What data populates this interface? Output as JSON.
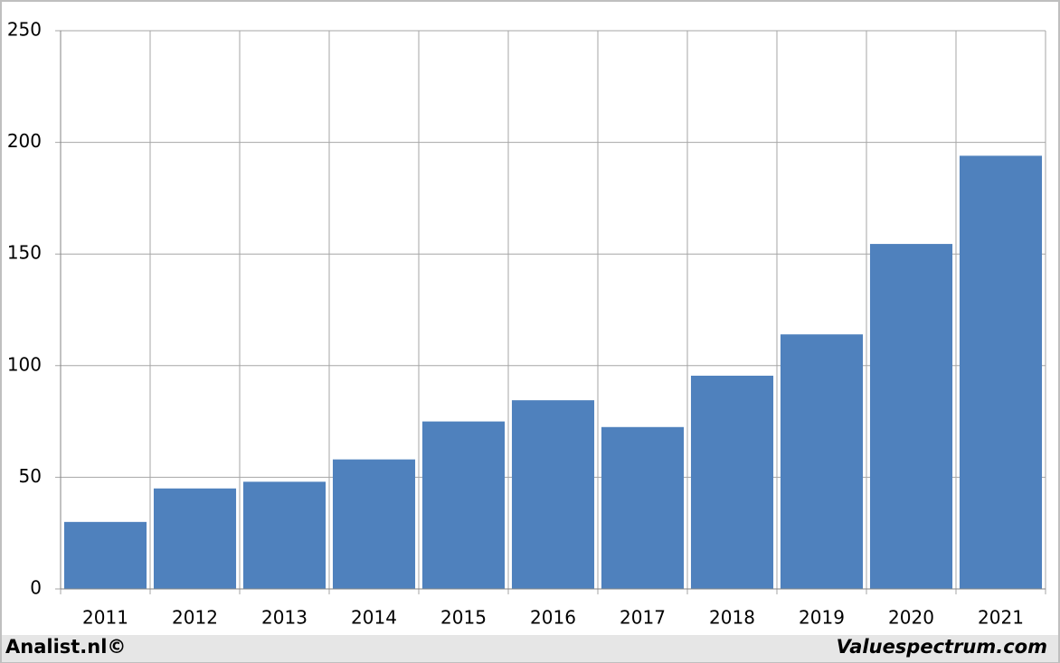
{
  "chart_data": {
    "type": "bar",
    "categories": [
      "2011",
      "2012",
      "2013",
      "2014",
      "2015",
      "2016",
      "2017",
      "2018",
      "2019",
      "2020",
      "2021"
    ],
    "values": [
      30,
      45,
      48,
      58,
      75,
      84.5,
      72.5,
      95.5,
      114,
      154.5,
      194
    ],
    "color": "#4f81bd",
    "ylim": [
      0,
      250
    ],
    "yticks": [
      0,
      50,
      100,
      150,
      200,
      250
    ],
    "grid": true,
    "footer_left": "Analist.nl©",
    "footer_right": "Valuespectrum.com"
  }
}
